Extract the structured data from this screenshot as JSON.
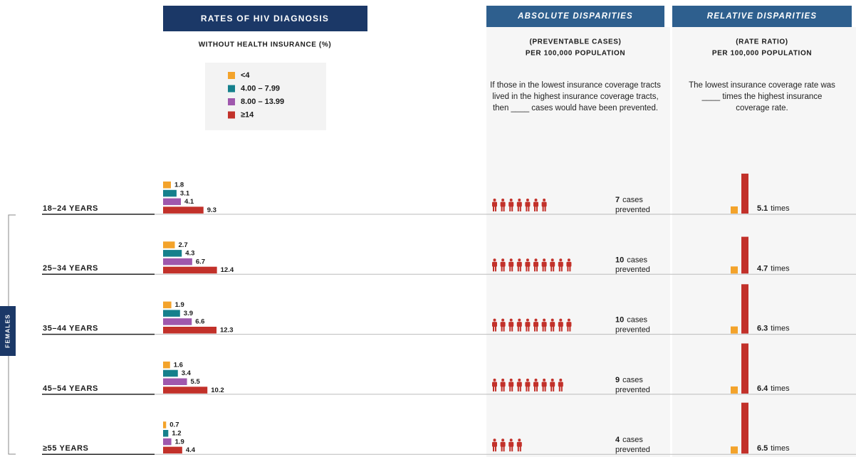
{
  "chart_data": {
    "type": "bar",
    "title": "RATES OF HIV DIAGNOSIS",
    "subtitle": "WITHOUT HEALTH INSURANCE (%)",
    "group_label": "FEMALES",
    "categories": [
      "18–24 YEARS",
      "25–34 YEARS",
      "35–44 YEARS",
      "45–54 YEARS",
      "≥55 YEARS"
    ],
    "series": [
      {
        "name": "<4",
        "color": "#f3a32b",
        "values": [
          1.8,
          2.7,
          1.9,
          1.6,
          0.7
        ]
      },
      {
        "name": "4.00 – 7.99",
        "color": "#15808c",
        "values": [
          3.1,
          4.3,
          3.9,
          3.4,
          1.2
        ]
      },
      {
        "name": "8.00 – 13.99",
        "color": "#9f58ad",
        "values": [
          4.1,
          6.7,
          6.6,
          5.5,
          1.9
        ]
      },
      {
        "name": "≥14",
        "color": "#c2312a",
        "values": [
          9.3,
          12.4,
          12.3,
          10.2,
          4.4
        ]
      }
    ]
  },
  "absolute_disparities": {
    "title": "ABSOLUTE DISPARITIES",
    "subtitle_1": "(PREVENTABLE CASES)",
    "subtitle_2": "PER 100,000 POPULATION",
    "description": "If those in the lowest insurance coverage tracts lived in the highest insurance coverage tracts, then ____ cases would have been prevented.",
    "cases": [
      7,
      10,
      10,
      9,
      4
    ],
    "unit_1": "cases",
    "unit_2": "prevented",
    "color": "#c2312a"
  },
  "relative_disparities": {
    "title": "RELATIVE DISPARITIES",
    "subtitle_1": "(RATE RATIO)",
    "subtitle_2": "PER 100,000 POPULATION",
    "description": "The lowest insurance coverage rate was ____ times the highest insurance coverage rate.",
    "ratios": [
      5.1,
      4.7,
      6.3,
      6.4,
      6.5
    ],
    "unit": "times",
    "base_color": "#f3a32b",
    "color": "#c2312a"
  }
}
